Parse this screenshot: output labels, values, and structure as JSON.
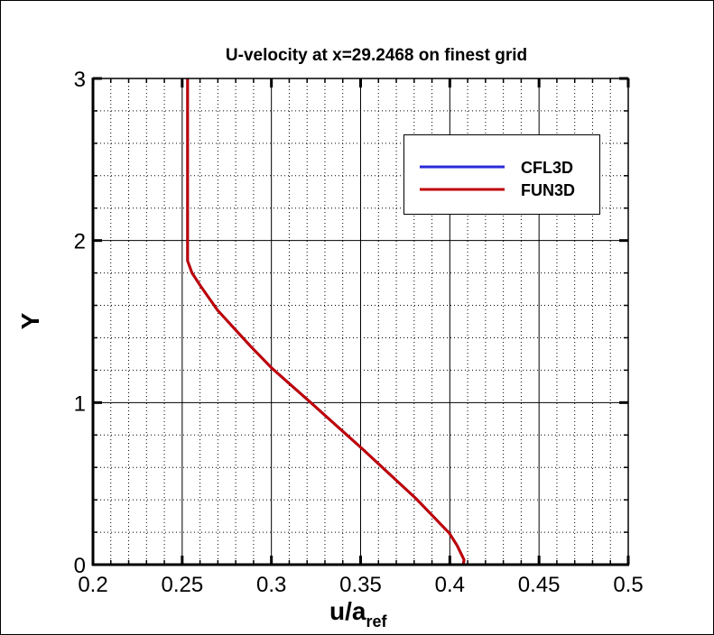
{
  "chart_data": {
    "type": "line",
    "title": "U-velocity at x=29.2468 on finest grid",
    "xlabel": "u/a",
    "xlabel_subscript": "ref",
    "ylabel": "Y",
    "xlim": [
      0.2,
      0.5
    ],
    "ylim": [
      0,
      3
    ],
    "xticks": [
      "0.2",
      "0.25",
      "0.3",
      "0.35",
      "0.4",
      "0.45",
      "0.5"
    ],
    "yticks": [
      "0",
      "1",
      "2",
      "3"
    ],
    "grid": true,
    "legend_position": "top-right",
    "series": [
      {
        "name": "CFL3D",
        "color": "#2b2bd9",
        "x": [
          0.4075,
          0.408,
          0.404,
          0.3997,
          0.381,
          0.351,
          0.322,
          0.3,
          0.2884,
          0.2698,
          0.2605,
          0.2555,
          0.253,
          0.253
        ],
        "y": [
          0,
          0.03,
          0.12,
          0.195,
          0.408,
          0.714,
          1.0,
          1.215,
          1.347,
          1.57,
          1.716,
          1.8,
          1.875,
          3.0
        ]
      },
      {
        "name": "FUN3D",
        "color": "#c00000",
        "x": [
          0.4075,
          0.408,
          0.404,
          0.3997,
          0.381,
          0.351,
          0.322,
          0.3,
          0.2884,
          0.2698,
          0.2605,
          0.2555,
          0.253,
          0.253
        ],
        "y": [
          0,
          0.03,
          0.12,
          0.195,
          0.408,
          0.714,
          1.0,
          1.215,
          1.347,
          1.57,
          1.716,
          1.8,
          1.875,
          3.0
        ]
      }
    ]
  }
}
